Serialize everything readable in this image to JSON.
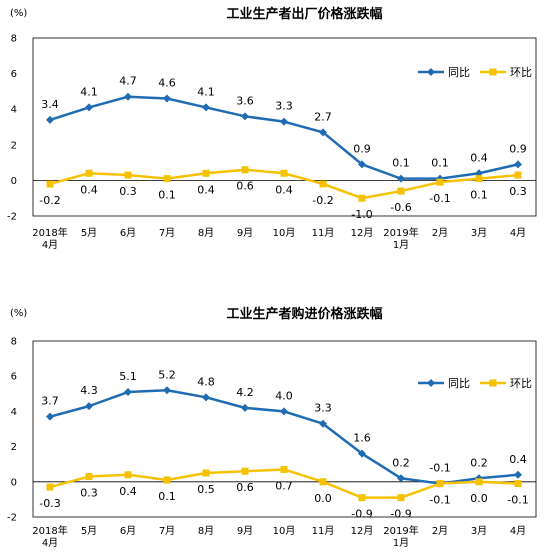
{
  "colors": {
    "yoy": "#1f6cb4",
    "mom": "#f6c200",
    "axis": "#000000",
    "plot_border": "#000000"
  },
  "chart_data": [
    {
      "type": "line",
      "title": "工业生产者出厂价格涨跌幅",
      "unit": "(%)",
      "categories": [
        "2018年4月",
        "5月",
        "6月",
        "7月",
        "8月",
        "9月",
        "10月",
        "11月",
        "12月",
        "2019年1月",
        "2月",
        "3月",
        "4月"
      ],
      "ylim": [
        -2,
        8
      ],
      "yticks": [
        -2,
        0,
        2,
        4,
        6,
        8
      ],
      "grid": false,
      "legend_position": "top-right",
      "series": [
        {
          "name": "同比",
          "values": [
            3.4,
            4.1,
            4.7,
            4.6,
            4.1,
            3.6,
            3.3,
            2.7,
            0.9,
            0.1,
            0.1,
            0.4,
            0.9
          ],
          "labels": [
            "3.4",
            "4.1",
            "4.7",
            "4.6",
            "4.1",
            "3.6",
            "3.3",
            "2.7",
            "0.9",
            "0.1",
            "0.1",
            "0.4",
            "0.9"
          ]
        },
        {
          "name": "环比",
          "values": [
            -0.2,
            0.4,
            0.3,
            0.1,
            0.4,
            0.6,
            0.4,
            -0.2,
            -1.0,
            -0.6,
            -0.1,
            0.1,
            0.3
          ],
          "labels": [
            "-0.2",
            "0.4",
            "0.3",
            "0.1",
            "0.4",
            "0.6",
            "0.4",
            "-0.2",
            "-1.0",
            "-0.6",
            "-0.1",
            "0.1",
            "0.3"
          ]
        }
      ]
    },
    {
      "type": "line",
      "title": "工业生产者购进价格涨跌幅",
      "unit": "(%)",
      "categories": [
        "2018年4月",
        "5月",
        "6月",
        "7月",
        "8月",
        "9月",
        "10月",
        "11月",
        "12月",
        "2019年1月",
        "2月",
        "3月",
        "4月"
      ],
      "ylim": [
        -2,
        8
      ],
      "yticks": [
        -2,
        0,
        2,
        4,
        6,
        8
      ],
      "grid": false,
      "legend_position": "top-right",
      "series": [
        {
          "name": "同比",
          "values": [
            3.7,
            4.3,
            5.1,
            5.2,
            4.8,
            4.2,
            4.0,
            3.3,
            1.6,
            0.2,
            -0.1,
            0.2,
            0.4
          ],
          "labels": [
            "3.7",
            "4.3",
            "5.1",
            "5.2",
            "4.8",
            "4.2",
            "4.0",
            "3.3",
            "1.6",
            "0.2",
            "-0.1",
            "0.2",
            "0.4"
          ]
        },
        {
          "name": "环比",
          "values": [
            -0.3,
            0.3,
            0.4,
            0.1,
            0.5,
            0.6,
            0.7,
            0.0,
            -0.9,
            -0.9,
            -0.1,
            0.0,
            -0.1
          ],
          "labels": [
            "-0.3",
            "0.3",
            "0.4",
            "0.1",
            "0.5",
            "0.6",
            "0.7",
            "0.0",
            "-0.9",
            "-0.9",
            "-0.1",
            "0.0",
            "-0.1"
          ]
        }
      ]
    }
  ]
}
